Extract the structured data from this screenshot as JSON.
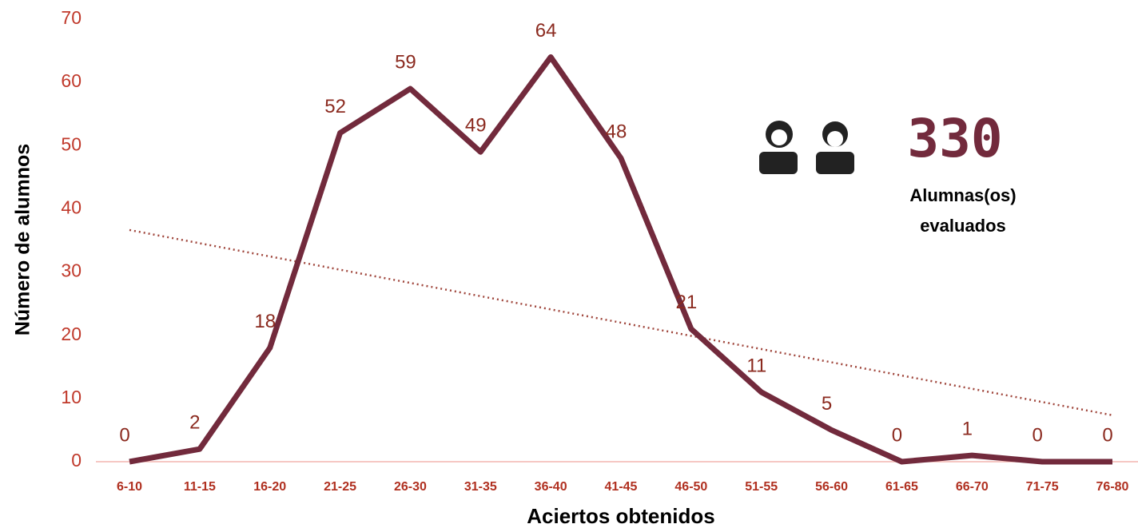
{
  "chart_data": {
    "type": "line",
    "x_label": "Aciertos obtenidos",
    "y_label": "Número de alumnos",
    "categories": [
      "6-10",
      "11-15",
      "16-20",
      "21-25",
      "26-30",
      "31-35",
      "36-40",
      "41-45",
      "46-50",
      "51-55",
      "56-60",
      "61-65",
      "66-70",
      "71-75",
      "76-80"
    ],
    "series": [
      {
        "name": "Alumnos",
        "color": "#722a3c",
        "values": [
          0,
          2,
          18,
          52,
          59,
          49,
          64,
          48,
          21,
          11,
          5,
          0,
          1,
          0,
          0
        ]
      }
    ],
    "trendline": "linear",
    "ylim": [
      0,
      70
    ],
    "yticks": [
      0,
      10,
      20,
      30,
      40,
      50,
      60,
      70
    ],
    "annotation": {
      "value": "330",
      "line1": "Alumnas(os)",
      "line2": "evaluados"
    }
  }
}
